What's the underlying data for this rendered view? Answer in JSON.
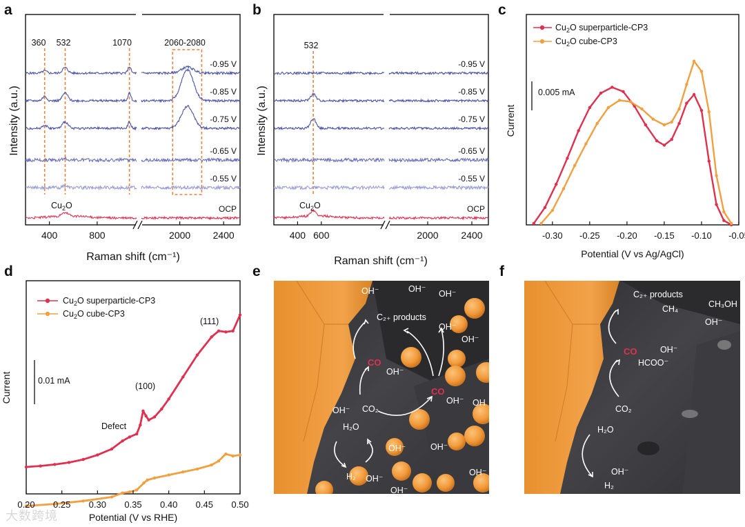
{
  "watermark": "大数跨境",
  "panels": {
    "a": {
      "letter": "a"
    },
    "b": {
      "letter": "b"
    },
    "c": {
      "letter": "c"
    },
    "d": {
      "letter": "d"
    },
    "e": {
      "letter": "e"
    },
    "f": {
      "letter": "f"
    }
  },
  "colors": {
    "blue_dark": "#4a52a6",
    "blue_mid": "#6b70b8",
    "blue_light": "#9a9fd2",
    "red": "#e03050",
    "orange": "#f0a040",
    "guide": "#e8823a",
    "particle": "#f29a3a",
    "surface": "#3b3b3e"
  },
  "chart_data": [
    {
      "panel": "a",
      "type": "line",
      "xlabel": "Raman shift (cm⁻¹)",
      "ylabel": "Intensity (a.u.)",
      "x_break": [
        1130,
        1650
      ],
      "xlim": [
        200,
        2550
      ],
      "xticks": [
        "400",
        "800",
        "2000",
        "2400"
      ],
      "peak_labels": [
        "360",
        "532",
        "1070",
        "2060-2080"
      ],
      "annotations": [
        "Cu₂O"
      ],
      "series": [
        {
          "name": "-0.95 V",
          "peaks": [
            [
              360,
              0.2
            ],
            [
              532,
              0.5
            ],
            [
              1070,
              0.6
            ],
            [
              2070,
              0.55
            ]
          ]
        },
        {
          "name": "-0.85 V",
          "peaks": [
            [
              360,
              0.4
            ],
            [
              532,
              0.7
            ],
            [
              1070,
              0.7
            ],
            [
              2070,
              2.8
            ]
          ]
        },
        {
          "name": "-0.75 V",
          "peaks": [
            [
              360,
              0.3
            ],
            [
              532,
              0.6
            ],
            [
              1070,
              0.6
            ],
            [
              2070,
              2.0
            ]
          ]
        },
        {
          "name": "-0.65 V",
          "peaks": [
            [
              532,
              0.15
            ]
          ]
        },
        {
          "name": "-0.55 V",
          "peaks": [
            [
              532,
              0.15
            ]
          ]
        },
        {
          "name": "OCP",
          "peaks": [
            [
              532,
              0.3
            ]
          ]
        }
      ]
    },
    {
      "panel": "b",
      "type": "line",
      "xlabel": "Raman shift (cm⁻¹)",
      "ylabel": "Intensity (a.u.)",
      "x_break": [
        1130,
        1650
      ],
      "xlim": [
        200,
        2550
      ],
      "xticks": [
        "400",
        "600",
        "2000",
        "2400"
      ],
      "peak_labels": [
        "532"
      ],
      "annotations": [
        "Cu₂O"
      ],
      "series": [
        {
          "name": "-0.95 V",
          "peaks": []
        },
        {
          "name": "-0.85 V",
          "peaks": [
            [
              532,
              0.6
            ]
          ]
        },
        {
          "name": "-0.75 V",
          "peaks": [
            [
              532,
              0.9
            ]
          ]
        },
        {
          "name": "-0.65 V",
          "peaks": []
        },
        {
          "name": "-0.55 V",
          "peaks": []
        },
        {
          "name": "OCP",
          "peaks": [
            [
              532,
              0.5
            ]
          ]
        }
      ]
    },
    {
      "panel": "c",
      "type": "line",
      "xlabel": "Potential (V vs Ag/AgCl)",
      "ylabel": "Current",
      "xlim": [
        -0.335,
        -0.05
      ],
      "xticks": [
        "-0.30",
        "-0.25",
        "-0.20",
        "-0.15",
        "-0.10",
        "-0.05"
      ],
      "scale_bar": "0.005 mA",
      "series": [
        {
          "name": "Cu₂O superparticle-CP3",
          "x": [
            -0.325,
            -0.31,
            -0.295,
            -0.28,
            -0.265,
            -0.25,
            -0.235,
            -0.22,
            -0.205,
            -0.19,
            -0.175,
            -0.16,
            -0.15,
            -0.14,
            -0.13,
            -0.12,
            -0.11,
            -0.1,
            -0.09,
            -0.08,
            -0.07,
            -0.06
          ],
          "y": [
            0.1,
            1.2,
            2.8,
            4.6,
            6.5,
            8.1,
            9.1,
            9.5,
            9.2,
            8.2,
            6.9,
            5.8,
            5.5,
            5.9,
            7.0,
            8.4,
            9.0,
            7.9,
            4.4,
            1.4,
            0.3,
            0.0
          ]
        },
        {
          "name": "Cu₂O cube-CP3",
          "x": [
            -0.315,
            -0.3,
            -0.285,
            -0.27,
            -0.255,
            -0.24,
            -0.225,
            -0.21,
            -0.195,
            -0.18,
            -0.165,
            -0.15,
            -0.14,
            -0.13,
            -0.12,
            -0.11,
            -0.1,
            -0.09,
            -0.08,
            -0.07,
            -0.06
          ],
          "y": [
            0.1,
            1.0,
            2.5,
            4.1,
            5.6,
            7.0,
            8.1,
            8.6,
            8.5,
            8.0,
            7.3,
            6.9,
            7.1,
            8.0,
            9.7,
            11.3,
            10.6,
            7.8,
            3.4,
            0.9,
            0.1
          ]
        }
      ]
    },
    {
      "panel": "d",
      "type": "line",
      "xlabel": "Potential (V vs RHE)",
      "ylabel": "Current",
      "xlim": [
        0.2,
        0.5
      ],
      "xticks": [
        "0.20",
        "0.25",
        "0.30",
        "0.35",
        "0.40",
        "0.45",
        "0.50"
      ],
      "scale_bar": "0.01 mA",
      "annotations": [
        "Defect",
        "(100)",
        "(111)"
      ],
      "series": [
        {
          "name": "Cu₂O superparticle-CP3",
          "x": [
            0.2,
            0.22,
            0.24,
            0.26,
            0.28,
            0.3,
            0.32,
            0.335,
            0.345,
            0.355,
            0.36,
            0.364,
            0.368,
            0.372,
            0.38,
            0.39,
            0.4,
            0.42,
            0.44,
            0.46,
            0.47,
            0.48,
            0.49,
            0.5
          ],
          "y": [
            0.0,
            0.1,
            0.25,
            0.45,
            0.75,
            1.2,
            1.8,
            2.6,
            3.0,
            3.3,
            4.2,
            5.6,
            5.1,
            4.7,
            5.0,
            5.8,
            6.8,
            9.0,
            11.2,
            13.0,
            13.6,
            13.5,
            13.6,
            15.2
          ]
        },
        {
          "name": "Cu₂O cube-CP3",
          "x": [
            0.2,
            0.24,
            0.28,
            0.32,
            0.335,
            0.345,
            0.355,
            0.365,
            0.37,
            0.38,
            0.4,
            0.42,
            0.44,
            0.46,
            0.47,
            0.48,
            0.49,
            0.5
          ],
          "y": [
            -3.9,
            -3.7,
            -3.4,
            -3.0,
            -2.6,
            -2.5,
            -2.3,
            -1.6,
            -1.3,
            -1.1,
            -0.8,
            -0.5,
            -0.2,
            0.2,
            0.6,
            1.3,
            1.1,
            1.2
          ]
        }
      ]
    }
  ],
  "schematic_e": {
    "labels": [
      "OH⁻",
      "OH⁻",
      "OH⁻",
      "C₂₊ products",
      "OH⁻",
      "OH⁻",
      "CO",
      "OH⁻",
      "CO",
      "OH⁻",
      "OH",
      "OH⁻",
      "CO₂",
      "H₂O",
      "OH⁻",
      "OH⁻",
      "H₂",
      "OH⁻",
      "OH⁻",
      "OH⁻"
    ]
  },
  "schematic_f": {
    "labels": [
      "C₂₊ products",
      "CH₄",
      "CH₃OH",
      "OH⁻",
      "CO",
      "OH⁻",
      "HCOO⁻",
      "CO₂",
      "H₂O",
      "OH⁻",
      "H₂"
    ]
  }
}
